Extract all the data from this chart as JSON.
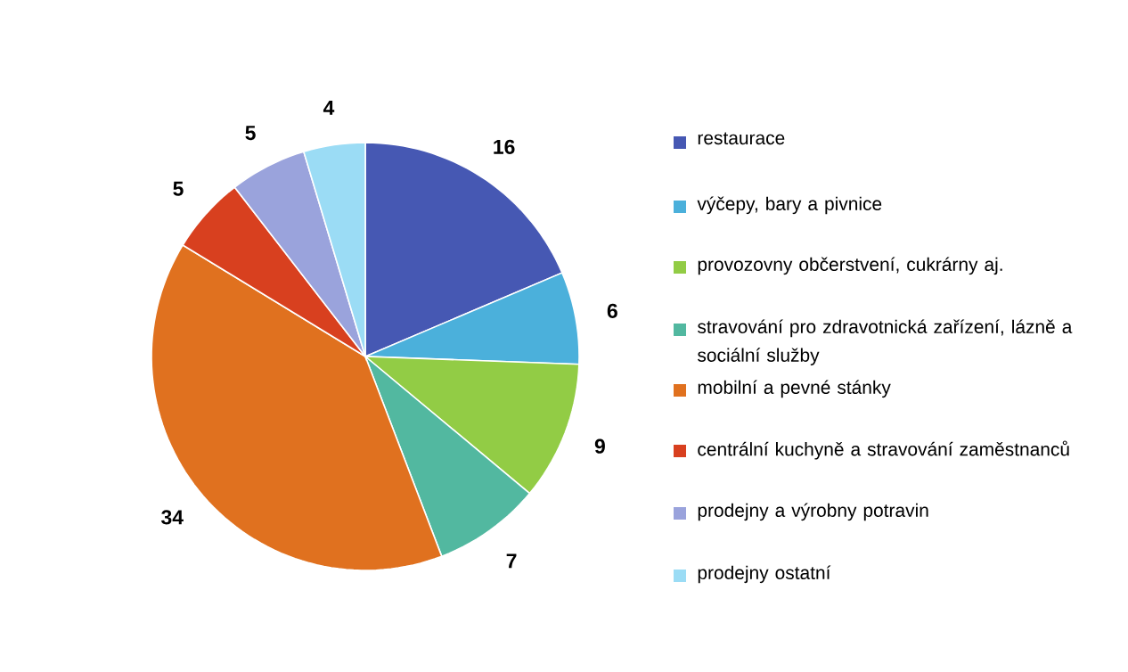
{
  "chart_data": {
    "type": "pie",
    "categories": [
      "restaurace",
      "výčepy, bary a pivnice",
      "provozovny občerstvení, cukrárny aj.",
      "stravování pro zdravotnická zařízení, lázně a sociální služby",
      "mobilní a pevné stánky",
      "centrální kuchyně a stravování zaměstnanců",
      "prodejny a výrobny potravin",
      "prodejny ostatní"
    ],
    "values": [
      16,
      6,
      9,
      7,
      34,
      5,
      5,
      4
    ],
    "colors": [
      "#4658b3",
      "#4bb0db",
      "#92cc45",
      "#52b8a0",
      "#e0711f",
      "#d8401f",
      "#9aa3dc",
      "#9bdcf5"
    ],
    "data_labels": true,
    "legend": "right"
  }
}
